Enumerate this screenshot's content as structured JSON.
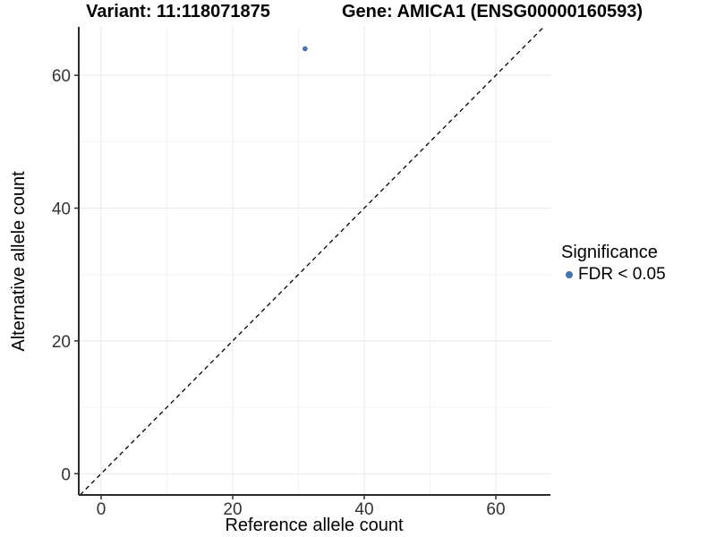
{
  "titles": {
    "variant_title": "Variant: 11:118071875",
    "gene_title": "Gene: AMICA1 (ENSG00000160593)"
  },
  "axes": {
    "x_label": "Reference allele count",
    "y_label": "Alternative allele count"
  },
  "legend": {
    "title": "Significance",
    "items": [
      {
        "label": "FDR < 0.05",
        "marker": "circle",
        "color": "#4276ac"
      }
    ]
  },
  "chart_data": {
    "type": "scatter",
    "title": "Variant: 11:118071875 / Gene: AMICA1 (ENSG00000160593)",
    "xlabel": "Reference allele count",
    "ylabel": "Alternative allele count",
    "xlim": [
      -3.4,
      68.3
    ],
    "ylim": [
      -3.2,
      67.3
    ],
    "x_ticks": [
      0,
      20,
      40,
      60
    ],
    "y_ticks": [
      0,
      20,
      40,
      60
    ],
    "x_minor_gridlines": [
      10,
      30,
      50
    ],
    "y_minor_gridlines": [
      10,
      30,
      50
    ],
    "grid": true,
    "legend_position": "right",
    "series": [
      {
        "name": "FDR < 0.05",
        "color": "#4276ac",
        "points": [
          {
            "x": 31,
            "y": 64
          }
        ]
      }
    ],
    "reference_line": {
      "type": "identity y = x",
      "style": "dashed",
      "color": "#000000"
    }
  },
  "style": {
    "background": "#ffffff",
    "grid_major_color": "#e8e8e8",
    "grid_minor_color": "#f4f4f4",
    "axis_line_color": "#2b2b2b",
    "tick_color": "#333333",
    "tick_label_color": "#333333",
    "text_color": "#000000"
  }
}
